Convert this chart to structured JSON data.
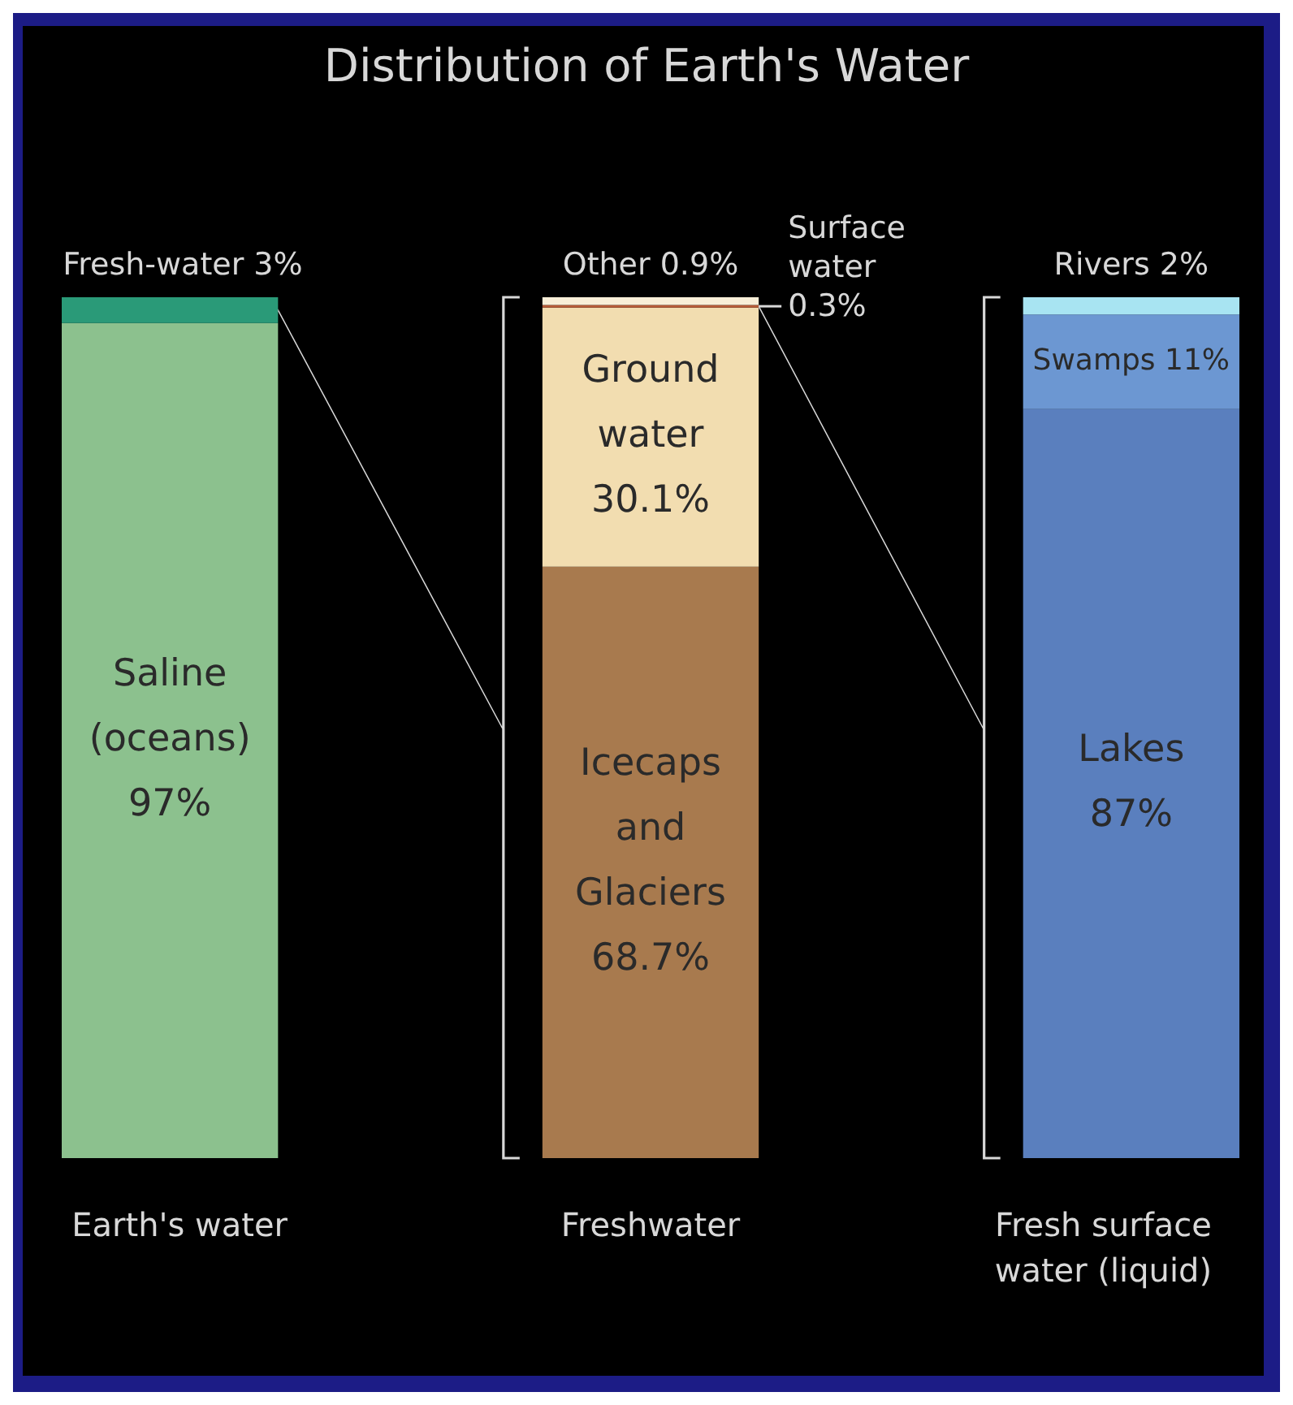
{
  "chart_data": {
    "type": "bar",
    "stacked": true,
    "title": "Distribution of Earth's Water",
    "categories": [
      "Earth's water",
      "Freshwater",
      "Fresh surface water (liquid)"
    ],
    "legend": false,
    "series": [
      {
        "name": "Saline (oceans)",
        "color": "#8cc18e",
        "values": [
          97,
          null,
          null
        ],
        "value_labels": [
          "97%",
          null,
          null
        ]
      },
      {
        "name": "Fresh-water",
        "color": "#2a9a78",
        "values": [
          3,
          null,
          null
        ],
        "value_labels": [
          "3%",
          null,
          null
        ]
      },
      {
        "name": "Icecaps and Glaciers",
        "color": "#a87a4e",
        "values": [
          null,
          68.7,
          null
        ],
        "value_labels": [
          null,
          "68.7%",
          null
        ]
      },
      {
        "name": "Ground water",
        "color": "#f2ddb0",
        "values": [
          null,
          30.1,
          null
        ],
        "value_labels": [
          null,
          "30.1%",
          null
        ]
      },
      {
        "name": "Surface water",
        "color": "#b85c38",
        "values": [
          null,
          0.3,
          null
        ],
        "value_labels": [
          null,
          "0.3%",
          null
        ]
      },
      {
        "name": "Other",
        "color": "#f8efd8",
        "values": [
          null,
          0.9,
          null
        ],
        "value_labels": [
          null,
          "0.9%",
          null
        ]
      },
      {
        "name": "Lakes",
        "color": "#5a7fbe",
        "values": [
          null,
          null,
          87
        ],
        "value_labels": [
          null,
          null,
          "87%"
        ]
      },
      {
        "name": "Swamps",
        "color": "#6c97d2",
        "values": [
          null,
          null,
          11
        ],
        "value_labels": [
          null,
          null,
          "11%"
        ]
      },
      {
        "name": "Rivers",
        "color": "#a8e4f2",
        "values": [
          null,
          null,
          2
        ],
        "value_labels": [
          null,
          null,
          "2%"
        ]
      }
    ]
  }
}
